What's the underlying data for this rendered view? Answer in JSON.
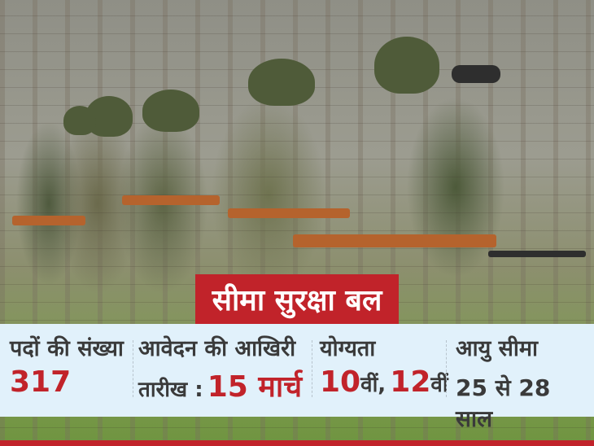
{
  "photo": {
    "description_icon": "soldiers-photo"
  },
  "title": "सीमा सुरक्षा बल",
  "info": [
    {
      "label": "पदों की संख्या",
      "value": "317"
    },
    {
      "label": "आवेदन की आखिरी",
      "label2": "तारीख :",
      "value": "15 मार्च"
    },
    {
      "label": "योग्यता",
      "value_a": "10",
      "suffix_a": "वीं,",
      "value_b": "12",
      "suffix_b": "वीं"
    },
    {
      "label": "आयु सीमा",
      "value": "25 से 28 साल"
    }
  ],
  "colors": {
    "accent": "#c1232a",
    "band": "#e1f1fb",
    "text": "#3a3a3a"
  }
}
